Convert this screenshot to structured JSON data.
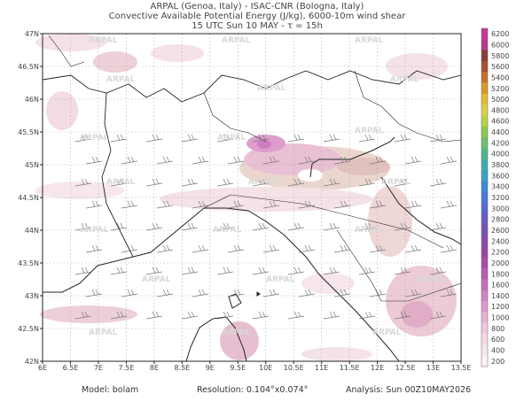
{
  "header": {
    "lines": [
      "ARPAL (Genoa, Italy)  -  ISAC-CNR (Bologna, Italy)",
      "Convective Available Potential Energy (J/kg), 6000-10m wind shear",
      "15 UTC Sun 10 MAY  -  τ = 15h"
    ]
  },
  "map": {
    "y_labels": [
      "47N",
      "46.5N",
      "46N",
      "45.5N",
      "45N",
      "44.5N",
      "44N",
      "43.5N",
      "43N",
      "42.5N",
      "42N"
    ],
    "x_labels": [
      "6E",
      "6.5E",
      "7E",
      "7.5E",
      "8E",
      "8.5E",
      "9E",
      "9.5E",
      "10E",
      "10.5E",
      "11E",
      "11.5E",
      "12E",
      "12.5E",
      "13E",
      "13.5E"
    ],
    "watermark": "ARPAL"
  },
  "colorbar": {
    "labels": [
      "6200",
      "6000",
      "5800",
      "5600",
      "5400",
      "5200",
      "5000",
      "4800",
      "4600",
      "4400",
      "4200",
      "4000",
      "3800",
      "3600",
      "3400",
      "3200",
      "3000",
      "2800",
      "2600",
      "2400",
      "2200",
      "2000",
      "1800",
      "1600",
      "1400",
      "1200",
      "1000",
      "800",
      "600",
      "400",
      "200"
    ]
  },
  "footer": {
    "model": "Model:  bolam",
    "resolution": "Resolution: 0.104°x0.074°",
    "analysis": "Analysis: Sun 00Z10MAY2026"
  }
}
